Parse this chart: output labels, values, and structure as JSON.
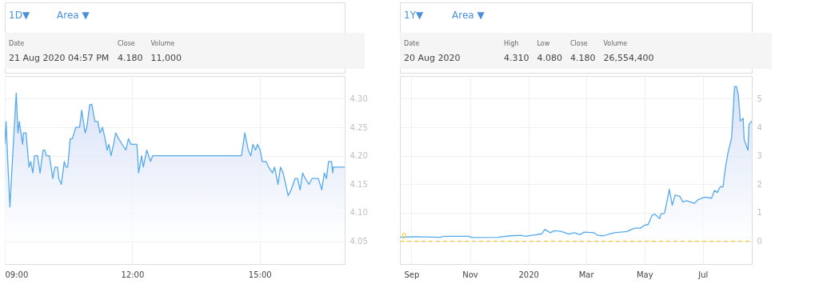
{
  "chart_data": [
    {
      "type": "area",
      "color": "#55aaee",
      "annotations": [
        "1D▼",
        "Area ▼",
        "Date",
        "21 Aug 2020 04:57 PM",
        "Close",
        "4.180",
        "Volume",
        "11,000"
      ],
      "x": [
        9.0,
        9.03,
        9.07,
        9.12,
        9.2,
        9.27,
        9.31,
        9.34,
        9.42,
        9.44,
        9.5,
        9.57,
        9.61,
        9.66,
        9.7,
        9.77,
        9.83,
        9.9,
        9.94,
        9.98,
        10.05,
        10.13,
        10.18,
        10.24,
        10.27,
        10.33,
        10.4,
        10.44,
        10.48,
        10.54,
        10.59,
        10.67,
        10.71,
        10.76,
        10.81,
        10.89,
        10.93,
        11.0,
        11.05,
        11.12,
        11.19,
        11.24,
        11.3,
        11.36,
        11.41,
        11.45,
        11.5,
        11.56,
        11.61,
        11.68,
        11.76,
        11.85,
        11.91,
        11.97,
        12.11,
        12.15,
        12.22,
        12.26,
        12.34,
        12.43,
        12.48,
        14.51,
        14.57,
        14.65,
        14.73,
        14.79,
        14.84,
        14.9,
        14.95,
        15.01,
        15.06,
        15.15,
        15.21,
        15.3,
        15.35,
        15.43,
        15.49,
        15.55,
        15.67,
        15.74,
        15.83,
        15.89,
        15.95,
        16.01,
        16.07,
        16.16,
        16.23,
        16.38,
        16.46,
        16.52,
        16.57,
        16.62,
        16.69,
        16.72,
        16.73,
        17.0
      ],
      "values": [
        4.22,
        4.26,
        4.19,
        4.11,
        4.22,
        4.31,
        4.24,
        4.26,
        4.22,
        4.24,
        4.24,
        4.18,
        4.19,
        4.17,
        4.2,
        4.2,
        4.17,
        4.21,
        4.21,
        4.2,
        4.2,
        4.16,
        4.18,
        4.18,
        4.16,
        4.15,
        4.19,
        4.18,
        4.18,
        4.23,
        4.23,
        4.25,
        4.25,
        4.25,
        4.28,
        4.24,
        4.25,
        4.29,
        4.29,
        4.26,
        4.26,
        4.24,
        4.25,
        4.23,
        4.21,
        4.22,
        4.2,
        4.22,
        4.24,
        4.23,
        4.22,
        4.21,
        4.23,
        4.22,
        4.22,
        4.17,
        4.2,
        4.18,
        4.21,
        4.19,
        4.2,
        4.2,
        4.2,
        4.24,
        4.21,
        4.2,
        4.22,
        4.21,
        4.22,
        4.21,
        4.19,
        4.19,
        4.18,
        4.17,
        4.18,
        4.15,
        4.18,
        4.17,
        4.13,
        4.14,
        4.16,
        4.16,
        4.14,
        4.17,
        4.16,
        4.15,
        4.16,
        4.16,
        4.14,
        4.17,
        4.16,
        4.19,
        4.19,
        4.17,
        4.18,
        4.18
      ],
      "xlim": [
        9,
        17
      ],
      "xticks": [
        {
          "value": 9,
          "label": "09:00"
        },
        {
          "value": 12,
          "label": "12:00"
        },
        {
          "value": 15,
          "label": "15:00"
        }
      ],
      "ylim": [
        4.01,
        4.34
      ],
      "yticks": [
        4.05,
        {
          "value": 4.1,
          "label": "4.10"
        },
        4.15,
        {
          "value": 4.2,
          "label": "4.20"
        },
        4.25,
        {
          "value": 4.3,
          "label": "4.30"
        }
      ],
      "grid": true
    },
    {
      "type": "area",
      "color": "#55aaee",
      "annotations": [
        "1Y▼",
        "Area ▼",
        "Date",
        "20 Aug 2020",
        "High",
        "4.310",
        "Low",
        "4.080",
        "Close",
        "4.180",
        "Volume",
        "26,554,400"
      ],
      "x": [
        "2019-08-20",
        "2019-09-05",
        "2019-10-01",
        "2019-10-05",
        "2019-10-31",
        "2019-11-03",
        "2019-11-30",
        "2019-12-13",
        "2019-12-24",
        "2019-12-29",
        "2020-01-05",
        "2020-01-15",
        "2020-01-18",
        "2020-01-24",
        "2020-01-28",
        "2020-02-04",
        "2020-02-12",
        "2020-02-18",
        "2020-02-24",
        "2020-02-28",
        "2020-03-09",
        "2020-03-13",
        "2020-03-19",
        "2020-03-26",
        "2020-03-31",
        "2020-04-13",
        "2020-04-16",
        "2020-04-21",
        "2020-04-27",
        "2020-05-01",
        "2020-05-05",
        "2020-05-09",
        "2020-05-12",
        "2020-05-17",
        "2020-05-18",
        "2020-05-22",
        "2020-05-27",
        "2020-05-30",
        "2020-06-02",
        "2020-06-07",
        "2020-06-10",
        "2020-06-14",
        "2020-06-22",
        "2020-06-26",
        "2020-07-03",
        "2020-07-10",
        "2020-07-13",
        "2020-07-16",
        "2020-07-19",
        "2020-07-22",
        "2020-07-24",
        "2020-07-27",
        "2020-07-31",
        "2020-08-03",
        "2020-08-05",
        "2020-08-07",
        "2020-08-09",
        "2020-08-12",
        "2020-08-13",
        "2020-08-17",
        "2020-08-18",
        "2020-08-21"
      ],
      "values": [
        0.14,
        0.16,
        0.14,
        0.17,
        0.17,
        0.13,
        0.14,
        0.19,
        0.21,
        0.17,
        0.21,
        0.26,
        0.41,
        0.3,
        0.37,
        0.35,
        0.25,
        0.3,
        0.23,
        0.32,
        0.3,
        0.21,
        0.19,
        0.26,
        0.3,
        0.34,
        0.39,
        0.46,
        0.46,
        0.56,
        0.59,
        0.91,
        0.95,
        0.79,
        0.95,
        0.99,
        1.82,
        1.26,
        1.62,
        1.58,
        1.38,
        1.42,
        1.33,
        1.46,
        1.55,
        1.51,
        1.78,
        1.71,
        1.91,
        1.91,
        2.47,
        3.08,
        3.64,
        5.43,
        5.43,
        5.12,
        4.22,
        4.31,
        3.57,
        3.19,
        4.09,
        4.22
      ],
      "xlim": [
        "2019-08-20",
        "2020-08-21"
      ],
      "xticks": [
        {
          "value": "2019-09-01",
          "label": "Sep"
        },
        {
          "value": "2019-11-01",
          "label": "Nov"
        },
        {
          "value": "2020-01-01",
          "label": "2020"
        },
        {
          "value": "2020-03-01",
          "label": "Mar"
        },
        {
          "value": "2020-05-01",
          "label": "May"
        },
        {
          "value": "2020-07-01",
          "label": "Jul"
        }
      ],
      "ylim": [
        -0.8,
        5.8
      ],
      "yticks": [
        0,
        1,
        2,
        3,
        4,
        5
      ],
      "ref_lines": [
        {
          "axis": "y",
          "value": 0,
          "label": "0",
          "color": "#f5c518",
          "line_style": "dashed"
        }
      ],
      "grid": true
    }
  ]
}
